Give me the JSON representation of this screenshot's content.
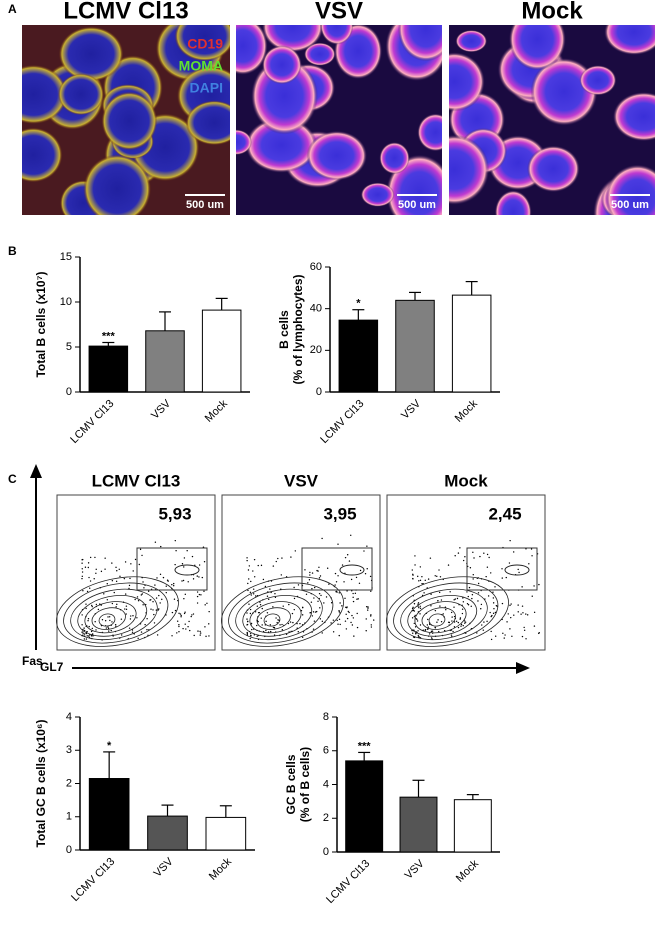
{
  "panels": {
    "a": {
      "label": "A",
      "titles": [
        "LCMV Cl13",
        "VSV",
        "Mock"
      ],
      "legend": [
        "CD19",
        "MOMA",
        "DAPI"
      ],
      "scale_bar": "500 um"
    },
    "b": {
      "label": "B"
    },
    "c": {
      "label": "C",
      "titles": [
        "LCMV Cl13",
        "VSV",
        "Mock"
      ],
      "gates": [
        "5,93",
        "3,95",
        "2,45"
      ],
      "y_axis": "Fas",
      "x_axis": "GL7"
    }
  },
  "chart_data": [
    {
      "type": "bar",
      "y_label": [
        "Total B cells (x10⁷)"
      ],
      "categories": [
        "LCMV Cl13",
        "VSV",
        "Mock"
      ],
      "values": [
        5.1,
        6.8,
        9.1
      ],
      "errors": [
        0.4,
        2.1,
        1.3
      ],
      "value_annotations": [
        "***",
        null,
        null
      ],
      "colors": [
        "#000000",
        "#808080",
        "#ffffff"
      ],
      "ylim": [
        0,
        15
      ],
      "yticks": [
        0,
        5,
        10,
        15
      ]
    },
    {
      "type": "bar",
      "y_label": [
        "B cells",
        "(% of lymphocytes)"
      ],
      "categories": [
        "LCMV Cl13",
        "VSV",
        "Mock"
      ],
      "values": [
        34.5,
        44,
        46.5
      ],
      "errors": [
        5,
        3.8,
        6.5
      ],
      "value_annotations": [
        "*",
        null,
        null
      ],
      "colors": [
        "#000000",
        "#808080",
        "#ffffff"
      ],
      "ylim": [
        0,
        60
      ],
      "yticks": [
        0,
        20,
        40,
        60
      ]
    },
    {
      "type": "bar",
      "y_label": [
        "Total GC B cells (x10⁶)"
      ],
      "categories": [
        "LCMV Cl13",
        "VSV",
        "Mock"
      ],
      "values": [
        2.15,
        1.02,
        0.98
      ],
      "errors": [
        0.8,
        0.33,
        0.35
      ],
      "value_annotations": [
        "*",
        null,
        null
      ],
      "colors": [
        "#000000",
        "#555555",
        "#ffffff"
      ],
      "ylim": [
        0,
        4
      ],
      "yticks": [
        0,
        1,
        2,
        3,
        4
      ]
    },
    {
      "type": "bar",
      "y_label": [
        "GC B cells",
        "(% of B cells)"
      ],
      "categories": [
        "LCMV Cl13",
        "VSV",
        "Mock"
      ],
      "values": [
        5.4,
        3.25,
        3.1
      ],
      "errors": [
        0.5,
        1.0,
        0.3
      ],
      "value_annotations": [
        "***",
        null,
        null
      ],
      "colors": [
        "#000000",
        "#555555",
        "#ffffff"
      ],
      "ylim": [
        0,
        8
      ],
      "yticks": [
        0,
        2,
        4,
        6,
        8
      ]
    }
  ]
}
